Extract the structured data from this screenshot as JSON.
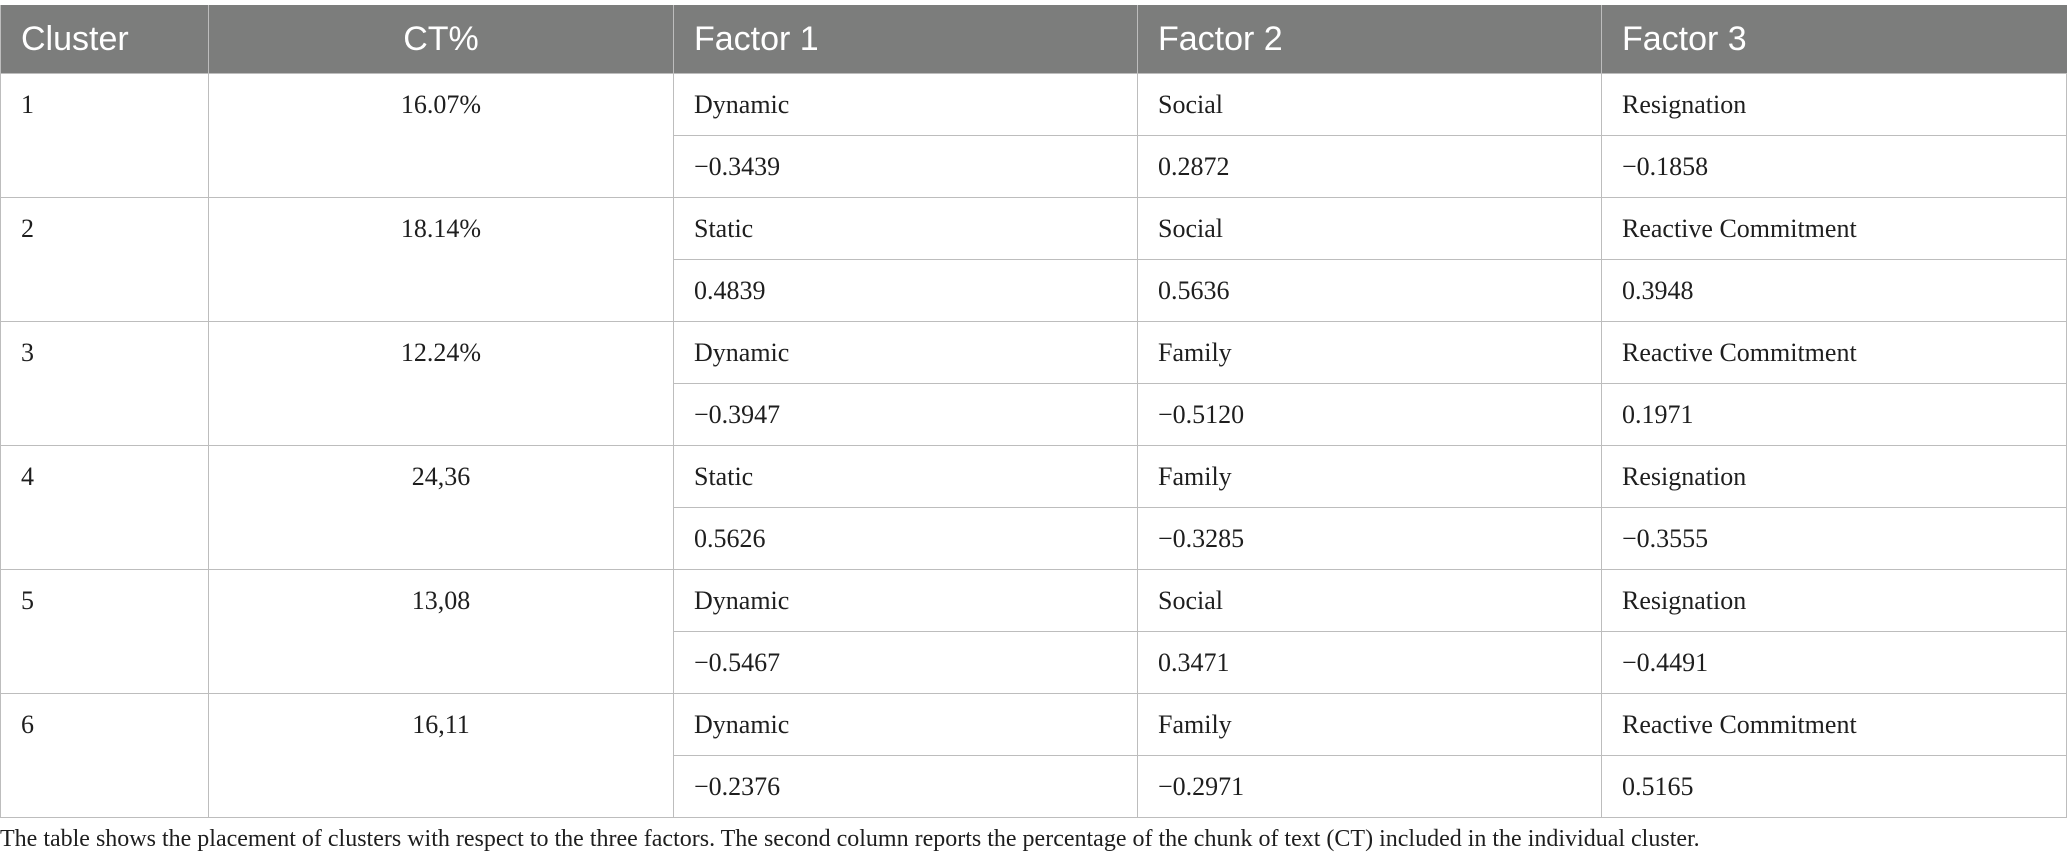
{
  "table": {
    "headers": [
      "Cluster",
      "CT%",
      "Factor 1",
      "Factor 2",
      "Factor 3"
    ],
    "clusters": [
      {
        "cluster": "1",
        "ct": "16.07%",
        "labels": [
          "Dynamic",
          "Social",
          "Resignation"
        ],
        "values": [
          "−0.3439",
          "0.2872",
          "−0.1858"
        ]
      },
      {
        "cluster": "2",
        "ct": "18.14%",
        "labels": [
          "Static",
          "Social",
          "Reactive Commitment"
        ],
        "values": [
          "0.4839",
          "0.5636",
          "0.3948"
        ]
      },
      {
        "cluster": "3",
        "ct": "12.24%",
        "labels": [
          "Dynamic",
          "Family",
          "Reactive Commitment"
        ],
        "values": [
          "−0.3947",
          "−0.5120",
          "0.1971"
        ]
      },
      {
        "cluster": "4",
        "ct": "24,36",
        "labels": [
          "Static",
          "Family",
          "Resignation"
        ],
        "values": [
          "0.5626",
          "−0.3285",
          "−0.3555"
        ]
      },
      {
        "cluster": "5",
        "ct": "13,08",
        "labels": [
          "Dynamic",
          "Social",
          "Resignation"
        ],
        "values": [
          "−0.5467",
          "0.3471",
          "−0.4491"
        ]
      },
      {
        "cluster": "6",
        "ct": "16,11",
        "labels": [
          "Dynamic",
          "Family",
          "Reactive Commitment"
        ],
        "values": [
          "−0.2376",
          "−0.2971",
          "0.5165"
        ]
      }
    ]
  },
  "caption": "The table shows the placement of clusters with respect to the three factors. The second column reports the percentage of the chunk of text (CT) included in the individual cluster.",
  "colors": {
    "header_bg": "#7c7d7c",
    "header_text": "#ffffff",
    "grid": "#bdbdbd",
    "text": "#1e1e1e"
  }
}
